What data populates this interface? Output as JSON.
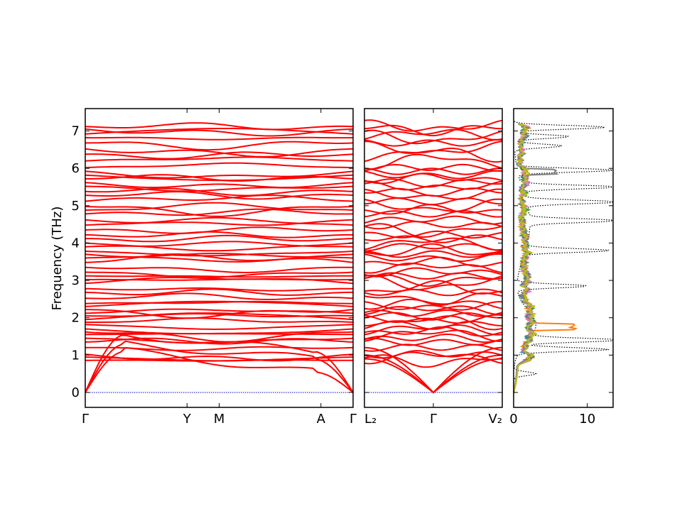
{
  "figure": {
    "ylabel": "Frequency (THz)"
  },
  "chart_data": [
    {
      "type": "line",
      "panel": "band-structure-1",
      "ylabel": "Frequency (THz)",
      "ylim": [
        -0.4,
        7.6
      ],
      "yticks": [
        0,
        1,
        2,
        3,
        4,
        5,
        6,
        7
      ],
      "xticks": [
        "Γ",
        "Y",
        "M",
        "A",
        "Γ"
      ],
      "xtick_positions": [
        0,
        0.38,
        0.5,
        0.88,
        1.0
      ],
      "band_color": "#ff0000",
      "zero_line_color": "#0000cc",
      "gamma_frequencies": [
        0,
        0,
        0,
        0.86,
        0.95,
        1.02,
        1.2,
        1.35,
        1.45,
        1.55,
        1.62,
        1.7,
        1.82,
        1.88,
        1.95,
        2.05,
        2.12,
        2.22,
        2.3,
        2.38,
        2.52,
        2.68,
        2.78,
        2.92,
        3.02,
        3.12,
        3.22,
        3.35,
        3.48,
        3.6,
        3.7,
        3.78,
        3.9,
        4.0,
        4.12,
        4.22,
        4.35,
        4.48,
        4.62,
        4.78,
        4.88,
        4.98,
        5.12,
        5.28,
        5.38,
        5.52,
        5.62,
        5.72,
        5.82,
        5.92,
        6.02,
        6.2,
        6.38,
        6.52,
        6.68,
        6.82,
        6.92,
        7.05,
        7.12
      ],
      "grid": false
    },
    {
      "type": "line",
      "panel": "band-structure-2",
      "ylim": [
        -0.4,
        7.6
      ],
      "xticks": [
        "L₂",
        "Γ",
        "V₂"
      ],
      "xtick_positions": [
        0,
        0.5,
        1.0
      ],
      "band_color": "#ff0000",
      "zero_line_color": "#0000cc",
      "grid": false
    },
    {
      "type": "line",
      "panel": "density-of-states",
      "xlim": [
        0,
        13.5
      ],
      "xticks": [
        0,
        10
      ],
      "ylim": [
        -0.4,
        7.6
      ],
      "total_dos_style": "dotted",
      "total_dos_color": "#000000",
      "series": [
        {
          "color": "#1f77b4"
        },
        {
          "color": "#ff7f0e"
        },
        {
          "color": "#2ca02c"
        },
        {
          "color": "#e377c2"
        },
        {
          "color": "#7f7f7f"
        },
        {
          "color": "#bcbd22"
        }
      ],
      "total_dos_peaks": [
        {
          "f": 7.1,
          "v": 12.5
        },
        {
          "f": 6.85,
          "v": 7.5
        },
        {
          "f": 6.6,
          "v": 6.5
        },
        {
          "f": 5.95,
          "v": 13.2
        },
        {
          "f": 5.5,
          "v": 13.0
        },
        {
          "f": 5.1,
          "v": 12.5
        },
        {
          "f": 4.6,
          "v": 12.0
        },
        {
          "f": 3.8,
          "v": 11.5
        },
        {
          "f": 2.85,
          "v": 9.5
        },
        {
          "f": 1.4,
          "v": 13.0
        },
        {
          "f": 1.15,
          "v": 12.0
        },
        {
          "f": 0.5,
          "v": 3.0
        }
      ]
    }
  ]
}
